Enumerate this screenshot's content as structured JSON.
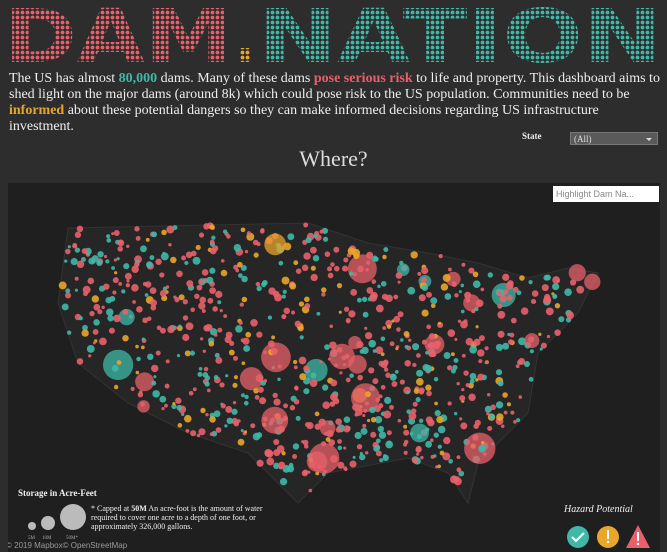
{
  "header": {
    "title_left": "DAM",
    "title_dot": ".",
    "title_right": "NATION"
  },
  "intro": [
    {
      "text": "The US has almost ",
      "style": "plain"
    },
    {
      "text": "80,000",
      "style": "teal"
    },
    {
      "text": " dams. Many of these dams ",
      "style": "plain"
    },
    {
      "text": "pose serious risk",
      "style": "red"
    },
    {
      "text": " to life and property. This dashboard aims to shed light on the major dams (around 8k) which could pose risk to the US population.  Communities need to be ",
      "style": "plain"
    },
    {
      "text": "informed",
      "style": "yellow"
    },
    {
      "text": " about these potential dangers so they can make informed decisions regarding US infrastructure investment.",
      "style": "plain"
    }
  ],
  "filter": {
    "label": "State",
    "value": "(All)"
  },
  "section_title": "Where?",
  "map": {
    "search_placeholder": "Highlight Dam Na...",
    "legend_title": "Storage in Acre-Feet",
    "legend_sizes": [
      "5M",
      "10M",
      "50M*"
    ],
    "footnote_bold": "50M",
    "footnote_pre": "* Capped at ",
    "footnote_post": " An acre-foot is the amount of water required to cover one acre to a depth of one foot, or approximately 326,000 gallons.",
    "hazard_title": "Hazard Potential",
    "copyright": "© 2019 Mapbox© OpenStreetMap"
  }
}
